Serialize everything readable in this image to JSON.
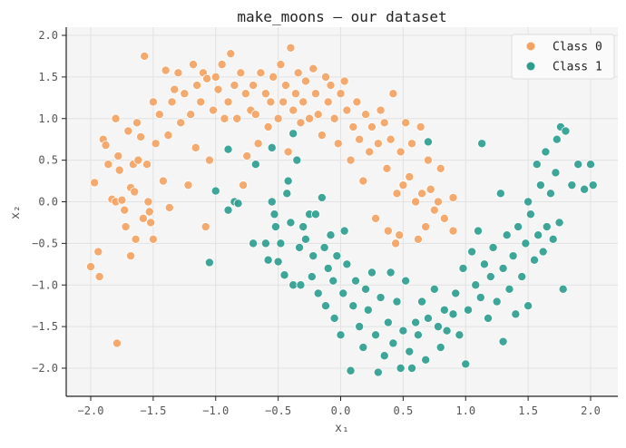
{
  "chart_data": {
    "type": "scatter",
    "title": "make_moons — our dataset",
    "xlabel": "x₁",
    "ylabel": "x₂",
    "xlim": [
      -2.2,
      2.2
    ],
    "ylim": [
      -2.35,
      2.1
    ],
    "xticks": [
      -2.0,
      -1.5,
      -1.0,
      -0.5,
      0.0,
      0.5,
      1.0,
      1.5,
      2.0
    ],
    "xtick_labels": [
      "−2.0",
      "−1.5",
      "−1.0",
      "−0.5",
      "0.0",
      "0.5",
      "1.0",
      "1.5",
      "2.0"
    ],
    "yticks": [
      -2.0,
      -1.5,
      -1.0,
      -0.5,
      0.0,
      0.5,
      1.0,
      1.5,
      2.0
    ],
    "ytick_labels": [
      "−2.0",
      "−1.5",
      "−1.0",
      "−0.5",
      "0.0",
      "0.5",
      "1.0",
      "1.5",
      "2.0"
    ],
    "grid": true,
    "legend_placement": "top-right",
    "series": [
      {
        "name": "Class 0",
        "color": "#f4a261",
        "points": [
          [
            -2.0,
            -0.78
          ],
          [
            -1.97,
            0.23
          ],
          [
            -1.94,
            -0.6
          ],
          [
            -1.93,
            -0.9
          ],
          [
            -1.9,
            0.75
          ],
          [
            -1.88,
            0.68
          ],
          [
            -1.86,
            0.45
          ],
          [
            -1.83,
            0.03
          ],
          [
            -1.8,
            0.0
          ],
          [
            -1.79,
            -1.7
          ],
          [
            -1.8,
            1.0
          ],
          [
            -1.78,
            0.55
          ],
          [
            -1.77,
            0.38
          ],
          [
            -1.75,
            0.02
          ],
          [
            -1.73,
            -0.1
          ],
          [
            -1.72,
            -0.3
          ],
          [
            -1.7,
            0.85
          ],
          [
            -1.68,
            0.17
          ],
          [
            -1.68,
            -0.65
          ],
          [
            -1.66,
            0.45
          ],
          [
            -1.65,
            0.12
          ],
          [
            -1.64,
            -0.45
          ],
          [
            -1.63,
            0.95
          ],
          [
            -1.62,
            0.5
          ],
          [
            -1.6,
            0.78
          ],
          [
            -1.58,
            -0.2
          ],
          [
            -1.57,
            1.75
          ],
          [
            -1.55,
            0.45
          ],
          [
            -1.54,
            0.0
          ],
          [
            -1.53,
            -0.12
          ],
          [
            -1.52,
            -0.25
          ],
          [
            -1.5,
            1.2
          ],
          [
            -1.5,
            -0.45
          ],
          [
            -1.48,
            0.7
          ],
          [
            -1.45,
            1.05
          ],
          [
            -1.42,
            0.25
          ],
          [
            -1.4,
            1.58
          ],
          [
            -1.38,
            0.8
          ],
          [
            -1.37,
            -0.07
          ],
          [
            -1.35,
            1.2
          ],
          [
            -1.33,
            1.35
          ],
          [
            -1.3,
            1.55
          ],
          [
            -1.28,
            0.95
          ],
          [
            -1.25,
            1.3
          ],
          [
            -1.22,
            0.2
          ],
          [
            -1.2,
            1.05
          ],
          [
            -1.18,
            1.65
          ],
          [
            -1.16,
            0.65
          ],
          [
            -1.15,
            1.4
          ],
          [
            -1.12,
            1.2
          ],
          [
            -1.1,
            1.55
          ],
          [
            -1.08,
            -0.3
          ],
          [
            -1.07,
            1.48
          ],
          [
            -1.05,
            0.5
          ],
          [
            -1.02,
            1.1
          ],
          [
            -1.0,
            1.5
          ],
          [
            -0.98,
            1.35
          ],
          [
            -0.95,
            1.65
          ],
          [
            -0.93,
            1.0
          ],
          [
            -0.9,
            1.2
          ],
          [
            -0.88,
            1.78
          ],
          [
            -0.85,
            1.4
          ],
          [
            -0.83,
            1.0
          ],
          [
            -0.8,
            1.55
          ],
          [
            -0.78,
            0.2
          ],
          [
            -0.76,
            1.3
          ],
          [
            -0.75,
            0.55
          ],
          [
            -0.72,
            1.1
          ],
          [
            -0.7,
            1.4
          ],
          [
            -0.68,
            1.05
          ],
          [
            -0.66,
            0.7
          ],
          [
            -0.64,
            1.55
          ],
          [
            -0.6,
            1.3
          ],
          [
            -0.58,
            0.9
          ],
          [
            -0.56,
            1.2
          ],
          [
            -0.54,
            1.5
          ],
          [
            -0.5,
            1.0
          ],
          [
            -0.48,
            1.65
          ],
          [
            -0.46,
            1.2
          ],
          [
            -0.44,
            1.4
          ],
          [
            -0.42,
            0.6
          ],
          [
            -0.4,
            1.85
          ],
          [
            -0.38,
            1.1
          ],
          [
            -0.36,
            1.3
          ],
          [
            -0.34,
            1.55
          ],
          [
            -0.32,
            0.95
          ],
          [
            -0.3,
            1.2
          ],
          [
            -0.28,
            1.45
          ],
          [
            -0.25,
            1.0
          ],
          [
            -0.22,
            1.6
          ],
          [
            -0.2,
            1.3
          ],
          [
            -0.18,
            1.05
          ],
          [
            -0.15,
            0.8
          ],
          [
            -0.12,
            1.5
          ],
          [
            -0.1,
            1.2
          ],
          [
            -0.08,
            1.4
          ],
          [
            -0.05,
            1.0
          ],
          [
            -0.02,
            0.7
          ],
          [
            0.0,
            1.3
          ],
          [
            0.03,
            1.45
          ],
          [
            0.05,
            1.1
          ],
          [
            0.08,
            0.5
          ],
          [
            0.1,
            0.9
          ],
          [
            0.13,
            1.2
          ],
          [
            0.15,
            0.75
          ],
          [
            0.18,
            0.25
          ],
          [
            0.2,
            1.05
          ],
          [
            0.23,
            0.6
          ],
          [
            0.25,
            0.9
          ],
          [
            0.28,
            -0.2
          ],
          [
            0.3,
            0.7
          ],
          [
            0.32,
            1.1
          ],
          [
            0.35,
            0.95
          ],
          [
            0.37,
            0.4
          ],
          [
            0.38,
            -0.35
          ],
          [
            0.4,
            0.75
          ],
          [
            0.42,
            1.3
          ],
          [
            0.44,
            -0.5
          ],
          [
            0.45,
            0.1
          ],
          [
            0.47,
            -0.4
          ],
          [
            0.48,
            0.6
          ],
          [
            0.5,
            0.2
          ],
          [
            0.52,
            0.95
          ],
          [
            0.55,
            0.3
          ],
          [
            0.57,
            0.7
          ],
          [
            0.6,
            0.0
          ],
          [
            0.62,
            -0.45
          ],
          [
            0.64,
            0.9
          ],
          [
            0.65,
            0.1
          ],
          [
            0.68,
            -0.3
          ],
          [
            0.7,
            0.5
          ],
          [
            0.72,
            0.15
          ],
          [
            0.75,
            -0.1
          ],
          [
            0.78,
            0.0
          ],
          [
            0.8,
            0.4
          ],
          [
            0.83,
            -0.2
          ],
          [
            0.9,
            -0.35
          ],
          [
            0.9,
            0.05
          ]
        ]
      },
      {
        "name": "Class 1",
        "color": "#2a9d8f",
        "points": [
          [
            -1.05,
            -0.73
          ],
          [
            -1.0,
            0.13
          ],
          [
            -0.9,
            0.63
          ],
          [
            -0.85,
            0.0
          ],
          [
            -0.82,
            -0.02
          ],
          [
            -0.7,
            -0.5
          ],
          [
            -0.68,
            0.45
          ],
          [
            -0.6,
            -0.5
          ],
          [
            -0.58,
            -0.7
          ],
          [
            -0.55,
            0.65
          ],
          [
            -0.55,
            0.0
          ],
          [
            -0.53,
            -0.15
          ],
          [
            -0.52,
            -0.3
          ],
          [
            -0.5,
            -0.72
          ],
          [
            -0.48,
            -0.5
          ],
          [
            -0.45,
            -0.88
          ],
          [
            -0.43,
            0.1
          ],
          [
            -0.42,
            0.25
          ],
          [
            -0.4,
            -0.25
          ],
          [
            -0.38,
            0.82
          ],
          [
            -0.38,
            -1.0
          ],
          [
            -0.35,
            0.5
          ],
          [
            -0.33,
            -0.55
          ],
          [
            -0.32,
            -1.0
          ],
          [
            -0.3,
            -0.3
          ],
          [
            -0.28,
            -0.45
          ],
          [
            -0.25,
            -0.15
          ],
          [
            -0.23,
            -0.9
          ],
          [
            -0.22,
            -0.65
          ],
          [
            -0.2,
            -0.15
          ],
          [
            -0.18,
            -1.1
          ],
          [
            -0.15,
            0.05
          ],
          [
            -0.13,
            -0.55
          ],
          [
            -0.12,
            -1.25
          ],
          [
            -0.1,
            -0.8
          ],
          [
            -0.08,
            -0.4
          ],
          [
            -0.06,
            -0.95
          ],
          [
            -0.05,
            -1.4
          ],
          [
            -0.03,
            -0.65
          ],
          [
            0.0,
            -1.6
          ],
          [
            0.02,
            -1.1
          ],
          [
            0.03,
            -0.35
          ],
          [
            0.05,
            -0.75
          ],
          [
            0.08,
            -2.03
          ],
          [
            0.1,
            -1.25
          ],
          [
            0.12,
            -0.95
          ],
          [
            0.15,
            -1.5
          ],
          [
            0.18,
            -1.75
          ],
          [
            0.2,
            -1.05
          ],
          [
            0.22,
            -1.3
          ],
          [
            0.25,
            -0.85
          ],
          [
            0.28,
            -1.6
          ],
          [
            0.3,
            -2.05
          ],
          [
            0.32,
            -1.15
          ],
          [
            0.35,
            -1.85
          ],
          [
            0.38,
            -1.45
          ],
          [
            0.4,
            -0.85
          ],
          [
            0.42,
            -1.7
          ],
          [
            0.45,
            -1.2
          ],
          [
            0.48,
            -2.0
          ],
          [
            0.5,
            -1.55
          ],
          [
            0.52,
            -0.95
          ],
          [
            0.55,
            -1.8
          ],
          [
            0.57,
            -2.0
          ],
          [
            0.6,
            -1.45
          ],
          [
            0.62,
            -1.6
          ],
          [
            0.65,
            -1.2
          ],
          [
            0.68,
            -1.9
          ],
          [
            0.7,
            -1.4
          ],
          [
            0.75,
            -1.05
          ],
          [
            0.78,
            -1.5
          ],
          [
            0.8,
            -1.75
          ],
          [
            0.83,
            -1.3
          ],
          [
            0.85,
            -1.55
          ],
          [
            0.9,
            -1.35
          ],
          [
            0.92,
            -1.1
          ],
          [
            0.95,
            -1.6
          ],
          [
            0.98,
            -0.8
          ],
          [
            1.0,
            -1.95
          ],
          [
            1.02,
            -1.3
          ],
          [
            1.05,
            -0.6
          ],
          [
            1.08,
            -1.0
          ],
          [
            1.1,
            -0.35
          ],
          [
            1.12,
            -1.15
          ],
          [
            1.13,
            0.7
          ],
          [
            1.15,
            -0.75
          ],
          [
            1.18,
            -1.4
          ],
          [
            1.2,
            -0.9
          ],
          [
            1.22,
            -0.55
          ],
          [
            1.25,
            -1.2
          ],
          [
            1.28,
            0.1
          ],
          [
            1.3,
            -1.68
          ],
          [
            1.3,
            -0.8
          ],
          [
            1.33,
            -0.4
          ],
          [
            1.35,
            -1.05
          ],
          [
            1.38,
            -0.65
          ],
          [
            1.4,
            -1.35
          ],
          [
            1.42,
            -0.3
          ],
          [
            1.45,
            -0.9
          ],
          [
            1.48,
            -0.5
          ],
          [
            1.5,
            0.0
          ],
          [
            1.5,
            -1.25
          ],
          [
            1.52,
            -0.15
          ],
          [
            1.55,
            -0.7
          ],
          [
            1.57,
            0.45
          ],
          [
            1.58,
            -0.4
          ],
          [
            1.6,
            0.2
          ],
          [
            1.62,
            -0.6
          ],
          [
            1.64,
            0.6
          ],
          [
            1.65,
            -0.3
          ],
          [
            1.68,
            0.1
          ],
          [
            1.7,
            -0.45
          ],
          [
            1.72,
            0.35
          ],
          [
            1.73,
            0.75
          ],
          [
            1.75,
            -0.25
          ],
          [
            1.76,
            0.9
          ],
          [
            1.78,
            -1.05
          ],
          [
            1.8,
            0.85
          ],
          [
            1.85,
            0.2
          ],
          [
            1.9,
            0.45
          ],
          [
            1.95,
            0.15
          ],
          [
            2.0,
            0.45
          ],
          [
            2.02,
            0.2
          ],
          [
            0.7,
            0.72
          ],
          [
            -0.9,
            -0.1
          ]
        ]
      }
    ]
  }
}
